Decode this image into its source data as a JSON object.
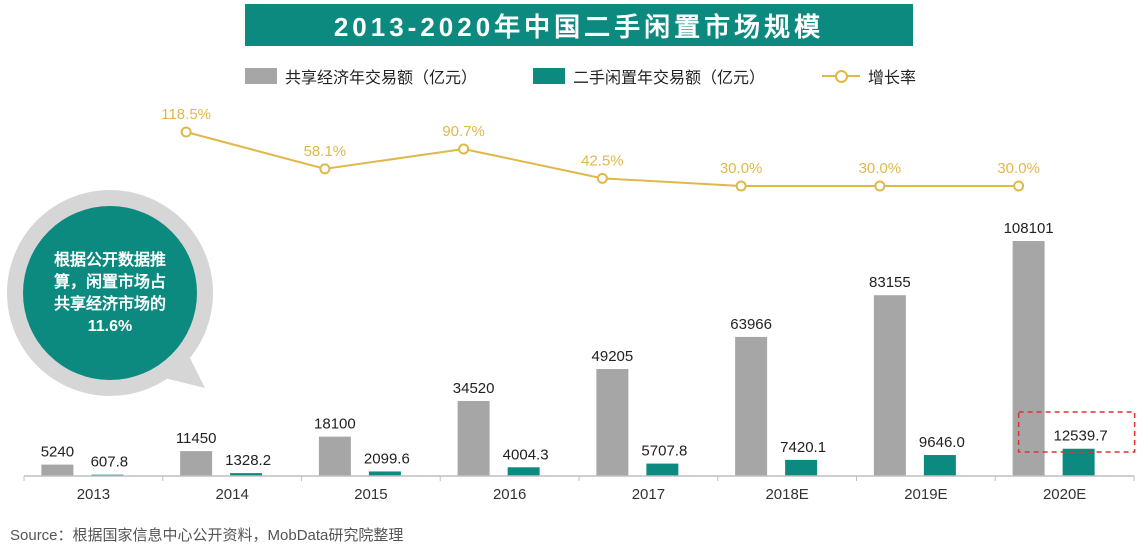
{
  "title": "2013-2020年中国二手闲置市场规模",
  "legend": {
    "sharing": "共享经济年交易额（亿元）",
    "secondhand": "二手闲置年交易额（亿元）",
    "growth": "增长率"
  },
  "callout": "根据公开数据推算，闲置市场占共享经济市场的11.6%",
  "source": "Source：根据国家信息中心公开资料，MobData研究院整理",
  "colors": {
    "title_bg": "#0d8a80",
    "sharing": "#a6a6a6",
    "secondhand": "#0d8a80",
    "growth": "#e0b84a",
    "highlight": "#e03030"
  },
  "chart_data": {
    "type": "bar",
    "categories": [
      "2013",
      "2014",
      "2015",
      "2016",
      "2017",
      "2018E",
      "2019E",
      "2020E"
    ],
    "series": [
      {
        "name": "共享经济年交易额（亿元）",
        "values": [
          5240,
          11450,
          18100,
          34520,
          49205,
          63966,
          83155,
          108101
        ],
        "labels": [
          "5240",
          "11450",
          "18100",
          "34520",
          "49205",
          "63966",
          "83155",
          "108101"
        ]
      },
      {
        "name": "二手闲置年交易额（亿元）",
        "values": [
          607.8,
          1328.2,
          2099.6,
          4004.3,
          5707.8,
          7420.1,
          9646.0,
          12539.7
        ],
        "labels": [
          "607.8",
          "1328.2",
          "2099.6",
          "4004.3",
          "5707.8",
          "7420.1",
          "9646.0",
          "12539.7"
        ]
      },
      {
        "name": "增长率",
        "type": "line",
        "values": [
          null,
          118.5,
          58.1,
          90.7,
          42.5,
          30.0,
          30.0,
          30.0
        ],
        "labels": [
          null,
          "118.5%",
          "58.1%",
          "90.7%",
          "42.5%",
          "30.0%",
          "30.0%",
          "30.0%"
        ]
      }
    ],
    "highlight": {
      "category": "2020E",
      "series": "二手闲置年交易额（亿元）",
      "style": "dashed-box"
    }
  }
}
